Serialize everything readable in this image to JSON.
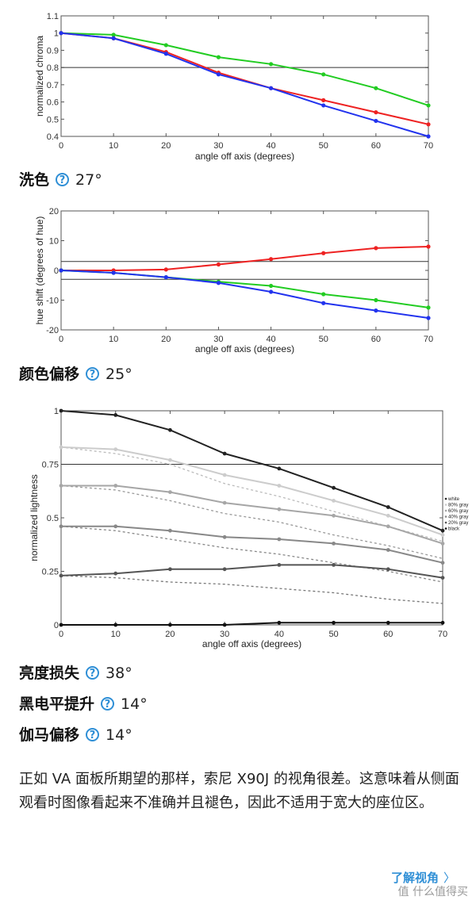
{
  "chart_data": [
    {
      "type": "line",
      "xlabel": "angle off axis (degrees)",
      "ylabel": "normalized chroma",
      "x": [
        0,
        10,
        20,
        30,
        40,
        50,
        60,
        70
      ],
      "xlim": [
        0,
        70
      ],
      "ylim": [
        0.4,
        1.1
      ],
      "yticks": [
        0.4,
        0.5,
        0.6,
        0.7,
        0.8,
        0.9,
        1,
        1.1
      ],
      "ytick_labels": [
        "0.4",
        "0.5",
        "0.6",
        "0.7",
        "0.8",
        "0.9",
        "1",
        "1.1"
      ],
      "reference_lines": [
        0.8
      ],
      "grid": false,
      "series": [
        {
          "color": "#22cc22",
          "values": [
            1.0,
            0.99,
            0.93,
            0.86,
            0.82,
            0.76,
            0.68,
            0.58
          ]
        },
        {
          "color": "#ee2222",
          "values": [
            1.0,
            0.97,
            0.89,
            0.77,
            0.68,
            0.61,
            0.54,
            0.47
          ]
        },
        {
          "color": "#2233ee",
          "values": [
            1.0,
            0.97,
            0.88,
            0.76,
            0.68,
            0.58,
            0.49,
            0.4
          ]
        }
      ]
    },
    {
      "type": "line",
      "xlabel": "angle off axis (degrees)",
      "ylabel": "hue shift (degrees of hue)",
      "x": [
        0,
        10,
        20,
        30,
        40,
        50,
        60,
        70
      ],
      "xlim": [
        0,
        70
      ],
      "ylim": [
        -20,
        20
      ],
      "yticks": [
        -20,
        -10,
        0,
        10,
        20
      ],
      "ytick_labels": [
        "-20",
        "-10",
        "0",
        "10",
        "20"
      ],
      "reference_lines": [
        3,
        -3
      ],
      "grid": false,
      "series": [
        {
          "color": "#ee2222",
          "values": [
            0,
            0,
            0.3,
            2,
            3.8,
            5.8,
            7.5,
            8
          ]
        },
        {
          "color": "#22cc22",
          "values": [
            0,
            -0.8,
            -2.3,
            -3.8,
            -5.2,
            -8,
            -10,
            -12.5
          ]
        },
        {
          "color": "#2233ee",
          "values": [
            0,
            -0.8,
            -2.3,
            -4.2,
            -7.2,
            -11,
            -13.5,
            -16
          ]
        }
      ]
    },
    {
      "type": "line",
      "xlabel": "angle off axis (degrees)",
      "ylabel": "normalized lightness",
      "x": [
        0,
        10,
        20,
        30,
        40,
        50,
        60,
        70
      ],
      "xlim": [
        0,
        70
      ],
      "ylim": [
        0,
        1
      ],
      "yticks": [
        0,
        0.25,
        0.5,
        0.75,
        1
      ],
      "ytick_labels": [
        "0",
        "0.25",
        "0.5",
        "0.75",
        "1"
      ],
      "reference_lines": [
        0.75
      ],
      "grid": false,
      "legend_position": "right",
      "series": [
        {
          "name": "white",
          "color": "#222222",
          "values": [
            1.0,
            0.98,
            0.91,
            0.8,
            0.73,
            0.64,
            0.55,
            0.44
          ]
        },
        {
          "name": "80% gray",
          "color": "#cccccc",
          "values": [
            0.83,
            0.82,
            0.77,
            0.7,
            0.65,
            0.58,
            0.51,
            0.42
          ]
        },
        {
          "name": "60% gray",
          "color": "#a6a6a6",
          "values": [
            0.65,
            0.65,
            0.62,
            0.57,
            0.54,
            0.51,
            0.46,
            0.38
          ]
        },
        {
          "name": "40% gray",
          "color": "#888888",
          "values": [
            0.46,
            0.46,
            0.44,
            0.41,
            0.4,
            0.38,
            0.35,
            0.29
          ]
        },
        {
          "name": "20% gray",
          "color": "#555555",
          "values": [
            0.23,
            0.24,
            0.26,
            0.26,
            0.28,
            0.28,
            0.26,
            0.22
          ]
        },
        {
          "name": "black",
          "color": "#111111",
          "values": [
            0.0,
            0.0,
            0.0,
            0.0,
            0.01,
            0.01,
            0.01,
            0.01
          ]
        }
      ],
      "reference_series": [
        {
          "color": "#bbbbbb",
          "values": [
            0.83,
            0.8,
            0.75,
            0.66,
            0.6,
            0.53,
            0.46,
            0.39
          ]
        },
        {
          "color": "#999999",
          "values": [
            0.65,
            0.63,
            0.58,
            0.52,
            0.48,
            0.42,
            0.37,
            0.31
          ]
        },
        {
          "color": "#888888",
          "values": [
            0.46,
            0.44,
            0.4,
            0.36,
            0.33,
            0.29,
            0.25,
            0.2
          ]
        },
        {
          "color": "#777777",
          "values": [
            0.23,
            0.22,
            0.2,
            0.19,
            0.17,
            0.15,
            0.12,
            0.1
          ]
        }
      ]
    }
  ],
  "metrics": {
    "wash": {
      "label": "洗色",
      "help": "?",
      "value": "27°"
    },
    "color_shift": {
      "label": "颜色偏移",
      "help": "?",
      "value": "25°"
    },
    "brightness_loss": {
      "label": "亮度损失",
      "help": "?",
      "value": "38°"
    },
    "black_level_raise": {
      "label": "黑电平提升",
      "help": "?",
      "value": "14°"
    },
    "gamma_shift": {
      "label": "伽马偏移",
      "help": "?",
      "value": "14°"
    }
  },
  "description": "正如 VA 面板所期望的那样，索尼 X90J 的视角很差。这意味着从侧面观看时图像看起来不准确并且褪色，因此不适用于宽大的座位区。",
  "more_link": {
    "label": "了解视角",
    "chevron": "〉"
  },
  "watermark": "值 什么值得买",
  "icons": {
    "help": "question-circle-icon",
    "more": "chevron-right-icon"
  }
}
